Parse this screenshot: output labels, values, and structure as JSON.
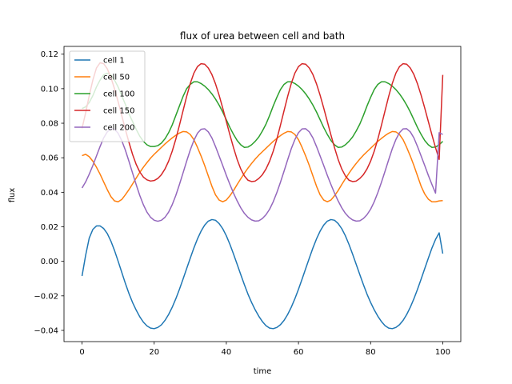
{
  "chart_data": {
    "type": "line",
    "title": "flux of urea between cell and bath",
    "xlabel": "time",
    "ylabel": "flux",
    "xlim": [
      -5,
      105
    ],
    "ylim": [
      -0.0465,
      0.1245
    ],
    "xticks": [
      0,
      20,
      40,
      60,
      80,
      100
    ],
    "xtick_labels": [
      "0",
      "20",
      "40",
      "60",
      "80",
      "100"
    ],
    "yticks": [
      -0.04,
      -0.02,
      0.0,
      0.02,
      0.04,
      0.06,
      0.08,
      0.1,
      0.12
    ],
    "ytick_labels": [
      "−0.04",
      "−0.02",
      "0.00",
      "0.02",
      "0.04",
      "0.06",
      "0.08",
      "0.10",
      "0.12"
    ],
    "grid": false,
    "legend_position": "top-left",
    "x": [
      0,
      1,
      2,
      3,
      4,
      5,
      6,
      7,
      8,
      9,
      10,
      11,
      12,
      13,
      14,
      15,
      16,
      17,
      18,
      19,
      20,
      21,
      22,
      23,
      24,
      25,
      26,
      27,
      28,
      29,
      30,
      31,
      32,
      33,
      34,
      35,
      36,
      37,
      38,
      39,
      40,
      41,
      42,
      43,
      44,
      45,
      46,
      47,
      48,
      49,
      50,
      51,
      52,
      53,
      54,
      55,
      56,
      57,
      58,
      59,
      60,
      61,
      62,
      63,
      64,
      65,
      66,
      67,
      68,
      69,
      70,
      71,
      72,
      73,
      74,
      75,
      76,
      77,
      78,
      79,
      80,
      81,
      82,
      83,
      84,
      85,
      86,
      87,
      88,
      89,
      90,
      91,
      92,
      93,
      94,
      95,
      96,
      97,
      98,
      99,
      100
    ],
    "series": [
      {
        "name": "cell 1",
        "color": "#1f77b4",
        "values": [
          -0.0085,
          0.0035,
          0.0135,
          0.0185,
          0.0205,
          0.0205,
          0.019,
          0.0161,
          0.0117,
          0.0063,
          0.0001,
          -0.0063,
          -0.0127,
          -0.0186,
          -0.0238,
          -0.0282,
          -0.0321,
          -0.0352,
          -0.0374,
          -0.0387,
          -0.039,
          -0.0383,
          -0.0368,
          -0.0342,
          -0.0308,
          -0.0266,
          -0.0217,
          -0.0162,
          -0.0103,
          -0.0042,
          0.0018,
          0.0077,
          0.013,
          0.0175,
          0.021,
          0.0233,
          0.0242,
          0.0238,
          0.0219,
          0.0189,
          0.0148,
          0.0098,
          0.0042,
          -0.0017,
          -0.0077,
          -0.0135,
          -0.019,
          -0.0238,
          -0.0281,
          -0.0318,
          -0.0349,
          -0.0373,
          -0.0387,
          -0.039,
          -0.0383,
          -0.0367,
          -0.0342,
          -0.0308,
          -0.0266,
          -0.0217,
          -0.0162,
          -0.0103,
          -0.0042,
          0.0018,
          0.0077,
          0.013,
          0.0175,
          0.021,
          0.0233,
          0.0242,
          0.0238,
          0.0219,
          0.0189,
          0.0148,
          0.0098,
          0.0042,
          -0.0017,
          -0.0077,
          -0.0135,
          -0.019,
          -0.0238,
          -0.0281,
          -0.0318,
          -0.0349,
          -0.0373,
          -0.0387,
          -0.039,
          -0.0383,
          -0.0367,
          -0.0342,
          -0.0308,
          -0.0266,
          -0.0217,
          -0.0162,
          -0.0103,
          -0.0042,
          0.0018,
          0.0077,
          0.0127,
          0.0165,
          0.0045
        ]
      },
      {
        "name": "cell 50",
        "color": "#ff7f0e",
        "values": [
          0.0612,
          0.062,
          0.0606,
          0.058,
          0.0545,
          0.0505,
          0.046,
          0.0415,
          0.0375,
          0.035,
          0.0345,
          0.0358,
          0.0385,
          0.0415,
          0.0448,
          0.0482,
          0.0515,
          0.0545,
          0.0572,
          0.0598,
          0.062,
          0.064,
          0.066,
          0.068,
          0.0698,
          0.0715,
          0.073,
          0.0743,
          0.0752,
          0.075,
          0.0735,
          0.0705,
          0.066,
          0.061,
          0.0555,
          0.0495,
          0.0435,
          0.0385,
          0.0355,
          0.0345,
          0.0355,
          0.038,
          0.041,
          0.0445,
          0.0478,
          0.051,
          0.054,
          0.0567,
          0.0592,
          0.0615,
          0.0635,
          0.0655,
          0.0675,
          0.0695,
          0.0712,
          0.0728,
          0.0742,
          0.0752,
          0.075,
          0.0735,
          0.0705,
          0.066,
          0.061,
          0.0555,
          0.0495,
          0.0435,
          0.0385,
          0.0355,
          0.0345,
          0.0355,
          0.038,
          0.041,
          0.0445,
          0.0478,
          0.051,
          0.054,
          0.0567,
          0.0592,
          0.0615,
          0.0635,
          0.0655,
          0.0675,
          0.0695,
          0.0712,
          0.0728,
          0.0742,
          0.0752,
          0.075,
          0.0735,
          0.0705,
          0.066,
          0.061,
          0.0555,
          0.0495,
          0.0435,
          0.039,
          0.036,
          0.0345,
          0.0345,
          0.035,
          0.0352
        ]
      },
      {
        "name": "cell 100",
        "color": "#2ca02c",
        "values": [
          0.0885,
          0.0895,
          0.092,
          0.096,
          0.101,
          0.105,
          0.108,
          0.109,
          0.108,
          0.105,
          0.101,
          0.096,
          0.091,
          0.0855,
          0.081,
          0.0765,
          0.0725,
          0.0695,
          0.0675,
          0.0665,
          0.0665,
          0.067,
          0.0685,
          0.071,
          0.0745,
          0.079,
          0.0845,
          0.09,
          0.0955,
          0.1,
          0.1025,
          0.104,
          0.104,
          0.103,
          0.1015,
          0.0995,
          0.097,
          0.094,
          0.0905,
          0.0865,
          0.082,
          0.0775,
          0.0735,
          0.07,
          0.0675,
          0.066,
          0.0662,
          0.0675,
          0.0695,
          0.072,
          0.0755,
          0.0795,
          0.0845,
          0.09,
          0.095,
          0.0995,
          0.1025,
          0.104,
          0.104,
          0.103,
          0.1015,
          0.0995,
          0.097,
          0.094,
          0.0905,
          0.0865,
          0.082,
          0.0775,
          0.0735,
          0.07,
          0.0675,
          0.066,
          0.0662,
          0.0675,
          0.0695,
          0.072,
          0.0755,
          0.0795,
          0.0845,
          0.09,
          0.095,
          0.0995,
          0.1025,
          0.104,
          0.104,
          0.103,
          0.1015,
          0.0995,
          0.097,
          0.094,
          0.0905,
          0.0865,
          0.082,
          0.0775,
          0.0735,
          0.07,
          0.0675,
          0.066,
          0.0662,
          0.0675,
          0.0695
        ]
      },
      {
        "name": "cell 150",
        "color": "#d62728",
        "values": [
          0.077,
          0.086,
          0.096,
          0.105,
          0.112,
          0.115,
          0.1145,
          0.1115,
          0.1065,
          0.1,
          0.0925,
          0.0845,
          0.0765,
          0.069,
          0.062,
          0.0562,
          0.0518,
          0.0488,
          0.0472,
          0.0465,
          0.0468,
          0.048,
          0.0502,
          0.0535,
          0.058,
          0.0638,
          0.0708,
          0.0788,
          0.0872,
          0.0955,
          0.103,
          0.109,
          0.1128,
          0.1145,
          0.1142,
          0.112,
          0.1082,
          0.1028,
          0.0962,
          0.0888,
          0.081,
          0.0732,
          0.0658,
          0.059,
          0.0535,
          0.0495,
          0.047,
          0.0462,
          0.0465,
          0.048,
          0.0502,
          0.0535,
          0.058,
          0.0638,
          0.0708,
          0.0788,
          0.0872,
          0.0955,
          0.103,
          0.109,
          0.1128,
          0.1145,
          0.1142,
          0.112,
          0.1082,
          0.1028,
          0.0962,
          0.0888,
          0.081,
          0.0732,
          0.0658,
          0.059,
          0.0535,
          0.0495,
          0.047,
          0.0462,
          0.0465,
          0.048,
          0.0502,
          0.0535,
          0.058,
          0.0638,
          0.0708,
          0.0788,
          0.0872,
          0.0955,
          0.103,
          0.109,
          0.1128,
          0.1145,
          0.1142,
          0.112,
          0.1082,
          0.1028,
          0.0962,
          0.0888,
          0.081,
          0.0732,
          0.0658,
          0.059,
          0.108
        ]
      },
      {
        "name": "cell 200",
        "color": "#9467bd",
        "values": [
          0.0425,
          0.046,
          0.0505,
          0.0555,
          0.061,
          0.0665,
          0.0715,
          0.075,
          0.0768,
          0.0765,
          0.0742,
          0.07,
          0.0645,
          0.058,
          0.0512,
          0.0445,
          0.0382,
          0.0328,
          0.0285,
          0.0255,
          0.0238,
          0.0232,
          0.0238,
          0.0255,
          0.0285,
          0.0328,
          0.0382,
          0.0445,
          0.0512,
          0.058,
          0.0645,
          0.07,
          0.0742,
          0.0765,
          0.0768,
          0.075,
          0.0715,
          0.0665,
          0.061,
          0.0555,
          0.0498,
          0.0445,
          0.0395,
          0.035,
          0.031,
          0.0278,
          0.0255,
          0.024,
          0.0233,
          0.0235,
          0.0248,
          0.027,
          0.0302,
          0.0345,
          0.0398,
          0.0458,
          0.0522,
          0.0588,
          0.0652,
          0.0705,
          0.0745,
          0.0767,
          0.0768,
          0.075,
          0.0715,
          0.0665,
          0.061,
          0.0555,
          0.0498,
          0.0445,
          0.0395,
          0.035,
          0.031,
          0.0278,
          0.0255,
          0.024,
          0.0233,
          0.0235,
          0.0248,
          0.027,
          0.0302,
          0.0345,
          0.0398,
          0.0458,
          0.0522,
          0.0588,
          0.0652,
          0.0705,
          0.0745,
          0.0767,
          0.0768,
          0.075,
          0.0715,
          0.0665,
          0.061,
          0.0555,
          0.0498,
          0.0445,
          0.0395,
          0.0745,
          0.0735
        ]
      }
    ]
  }
}
